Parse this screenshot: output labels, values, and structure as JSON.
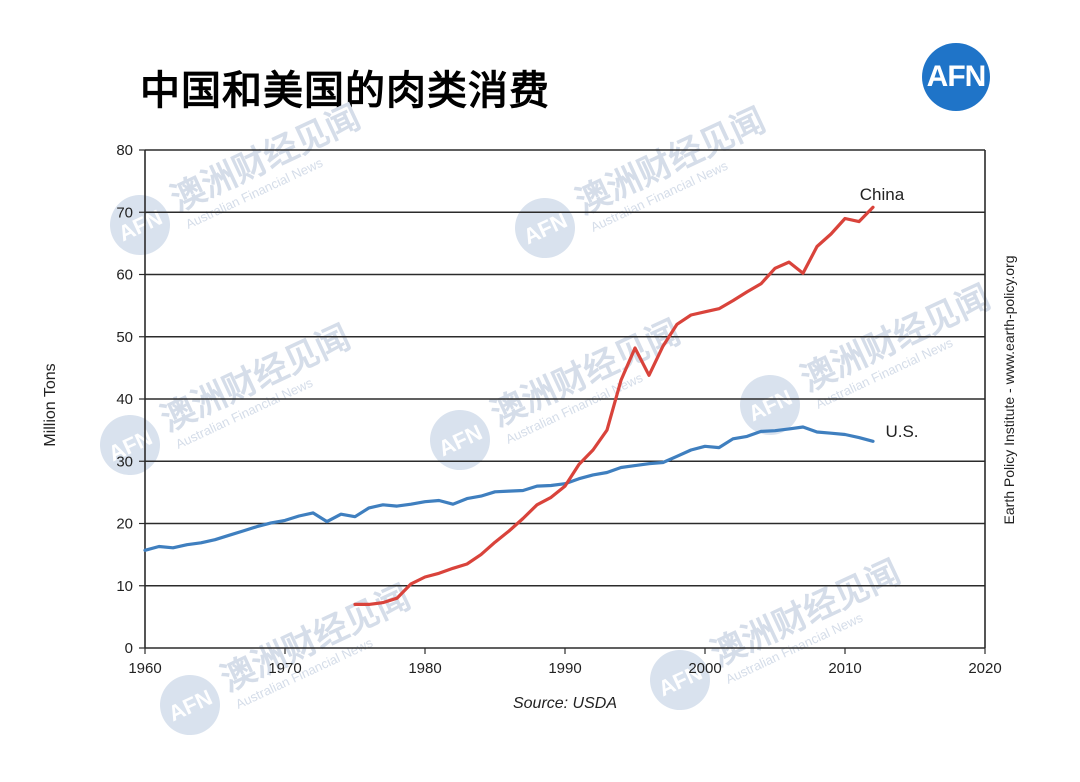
{
  "title": "中国和美国的肉类消费",
  "logo_text": "AFN",
  "watermark": {
    "logo": "AFN",
    "text": "澳洲财经见闻",
    "subtext": "Australian Financial News"
  },
  "colors": {
    "china": "#d9433b",
    "us": "#3f7fbf",
    "logo_bg": "#1f74c8",
    "grid": "#2b2b2b"
  },
  "chart_data": {
    "type": "line",
    "title": "",
    "xlabel": "",
    "ylabel": "Million Tons",
    "xlim": [
      1960,
      2020
    ],
    "ylim": [
      0,
      80
    ],
    "x_ticks": [
      1960,
      1970,
      1980,
      1990,
      2000,
      2010,
      2020
    ],
    "y_ticks": [
      0,
      10,
      20,
      30,
      40,
      50,
      60,
      70,
      80
    ],
    "grid": "horizontal",
    "source": "Source: USDA",
    "credit": "Earth Policy Institute - www.earth-policy.org",
    "series": [
      {
        "name": "U.S.",
        "color": "#3f7fbf",
        "x": [
          1960,
          1961,
          1962,
          1963,
          1964,
          1965,
          1966,
          1967,
          1968,
          1969,
          1970,
          1971,
          1972,
          1973,
          1974,
          1975,
          1976,
          1977,
          1978,
          1979,
          1980,
          1981,
          1982,
          1983,
          1984,
          1985,
          1986,
          1987,
          1988,
          1989,
          1990,
          1991,
          1992,
          1993,
          1994,
          1995,
          1996,
          1997,
          1998,
          1999,
          2000,
          2001,
          2002,
          2003,
          2004,
          2005,
          2006,
          2007,
          2008,
          2009,
          2010,
          2011,
          2012
        ],
        "y": [
          15.7,
          16.3,
          16.1,
          16.6,
          16.9,
          17.4,
          18.1,
          18.8,
          19.5,
          20.1,
          20.5,
          21.2,
          21.7,
          20.3,
          21.5,
          21.1,
          22.5,
          23.0,
          22.8,
          23.1,
          23.5,
          23.7,
          23.1,
          24.0,
          24.4,
          25.1,
          25.2,
          25.3,
          26.0,
          26.1,
          26.4,
          27.2,
          27.8,
          28.2,
          29.0,
          29.3,
          29.6,
          29.8,
          30.8,
          31.8,
          32.4,
          32.2,
          33.6,
          34.0,
          34.8,
          34.9,
          35.2,
          35.5,
          34.7,
          34.5,
          34.3,
          33.8,
          33.2
        ]
      },
      {
        "name": "China",
        "color": "#d9433b",
        "x": [
          1975,
          1976,
          1977,
          1978,
          1979,
          1980,
          1981,
          1982,
          1983,
          1984,
          1985,
          1986,
          1987,
          1988,
          1989,
          1990,
          1991,
          1992,
          1993,
          1994,
          1995,
          1996,
          1997,
          1998,
          1999,
          2000,
          2001,
          2002,
          2003,
          2004,
          2005,
          2006,
          2007,
          2008,
          2009,
          2010,
          2011,
          2012
        ],
        "y": [
          7.0,
          7.0,
          7.3,
          8.0,
          10.3,
          11.4,
          12.0,
          12.8,
          13.5,
          15.0,
          17.0,
          18.8,
          20.8,
          23.0,
          24.2,
          26.0,
          29.5,
          31.8,
          35.0,
          43.0,
          48.2,
          43.8,
          48.5,
          52.0,
          53.5,
          54.0,
          54.5,
          55.8,
          57.2,
          58.5,
          61.0,
          62.0,
          60.2,
          64.5,
          66.5,
          69.0,
          68.5,
          70.8
        ]
      }
    ]
  }
}
